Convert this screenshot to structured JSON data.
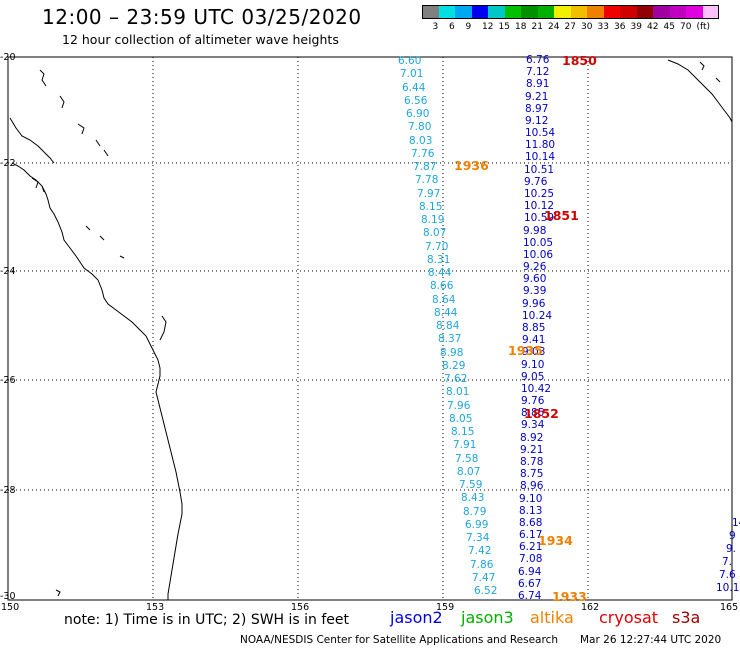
{
  "header": {
    "title": "12:00 – 23:59 UTC 03/25/2020",
    "subtitle": "12 hour collection of altimeter wave heights"
  },
  "scale": {
    "colors": [
      "#808080",
      "#00e0e0",
      "#00a8f0",
      "#0000f0",
      "#00c8c8",
      "#00c000",
      "#009000",
      "#00b000",
      "#f0f000",
      "#f0c000",
      "#f08000",
      "#f00000",
      "#d00000",
      "#900000",
      "#a000a0",
      "#c000c0",
      "#e000e0",
      "#ffc0ff"
    ],
    "labels": [
      "3",
      "6",
      "9",
      "12",
      "15",
      "18",
      "21",
      "24",
      "27",
      "30",
      "33",
      "36",
      "39",
      "42",
      "45",
      "70",
      "(ft)"
    ]
  },
  "axes": {
    "lat_labels": [
      "-20",
      "-22",
      "-24",
      "-26",
      "-28",
      "-30"
    ],
    "lon_labels": [
      "150",
      "153",
      "156",
      "159",
      "162",
      "165"
    ]
  },
  "pass_labels": [
    {
      "text": "1850",
      "color": "#d00000"
    },
    {
      "text": "1936",
      "color": "#f08000"
    },
    {
      "text": "1851",
      "color": "#d00000"
    },
    {
      "text": "1935",
      "color": "#f08000"
    },
    {
      "text": "1852",
      "color": "#d00000"
    },
    {
      "text": "1934",
      "color": "#f08000"
    },
    {
      "text": "1933",
      "color": "#f08000"
    }
  ],
  "tracks": {
    "track_a": [
      "6.60",
      "7.01",
      "6.44",
      "6.56",
      "6.90",
      "7.80",
      "8.03",
      "7.76",
      "7.87",
      "7.78",
      "7.97",
      "8.15",
      "8.19",
      "8.07",
      "7.70",
      "8.31",
      "8.44",
      "8.66",
      "8.64",
      "8.44",
      "8.84",
      "8.37",
      "8.98",
      "8.29",
      "7.62",
      "8.01",
      "7.96",
      "8.05",
      "8.15",
      "7.91",
      "7.58",
      "8.07",
      "7.59",
      "8.43",
      "8.79",
      "6.99",
      "7.34",
      "7.42",
      "7.86",
      "7.47",
      "6.52"
    ],
    "track_b": [
      "6.76",
      "7.12",
      "8.91",
      "9.21",
      "8.97",
      "9.12",
      "10.54",
      "11.80",
      "10.14",
      "10.51",
      "9.76",
      "10.25",
      "10.12",
      "10.59",
      "9.98",
      "10.05",
      "10.06",
      "9.26",
      "9.60",
      "9.39",
      "9.96",
      "10.24",
      "8.85",
      "9.41",
      "9.03",
      "9.10",
      "9.05",
      "10.42",
      "9.76",
      "8.85",
      "9.34",
      "8.92",
      "9.21",
      "8.78",
      "8.75",
      "8.96",
      "9.10",
      "8.13",
      "8.68",
      "6.17",
      "6.21",
      "7.08",
      "6.94",
      "6.67",
      "6.74"
    ],
    "track_c": [
      "14",
      "9",
      "9.",
      "7.",
      "7.6",
      "10.1"
    ]
  },
  "footer": {
    "note": "note:  1) Time is in UTC;  2) SWH is in feet",
    "sats": [
      {
        "text": "jason2",
        "color": "#0000e0"
      },
      {
        "text": "jason3",
        "color": "#00b000"
      },
      {
        "text": "altika",
        "color": "#f08000"
      },
      {
        "text": "cryosat",
        "color": "#e00000"
      },
      {
        "text": "s3a",
        "color": "#a00000"
      }
    ],
    "credit": "NOAA/NESDIS Center for Satellite Applications and Research",
    "timestamp": "Mar 26 12:27:44 UTC 2020"
  }
}
